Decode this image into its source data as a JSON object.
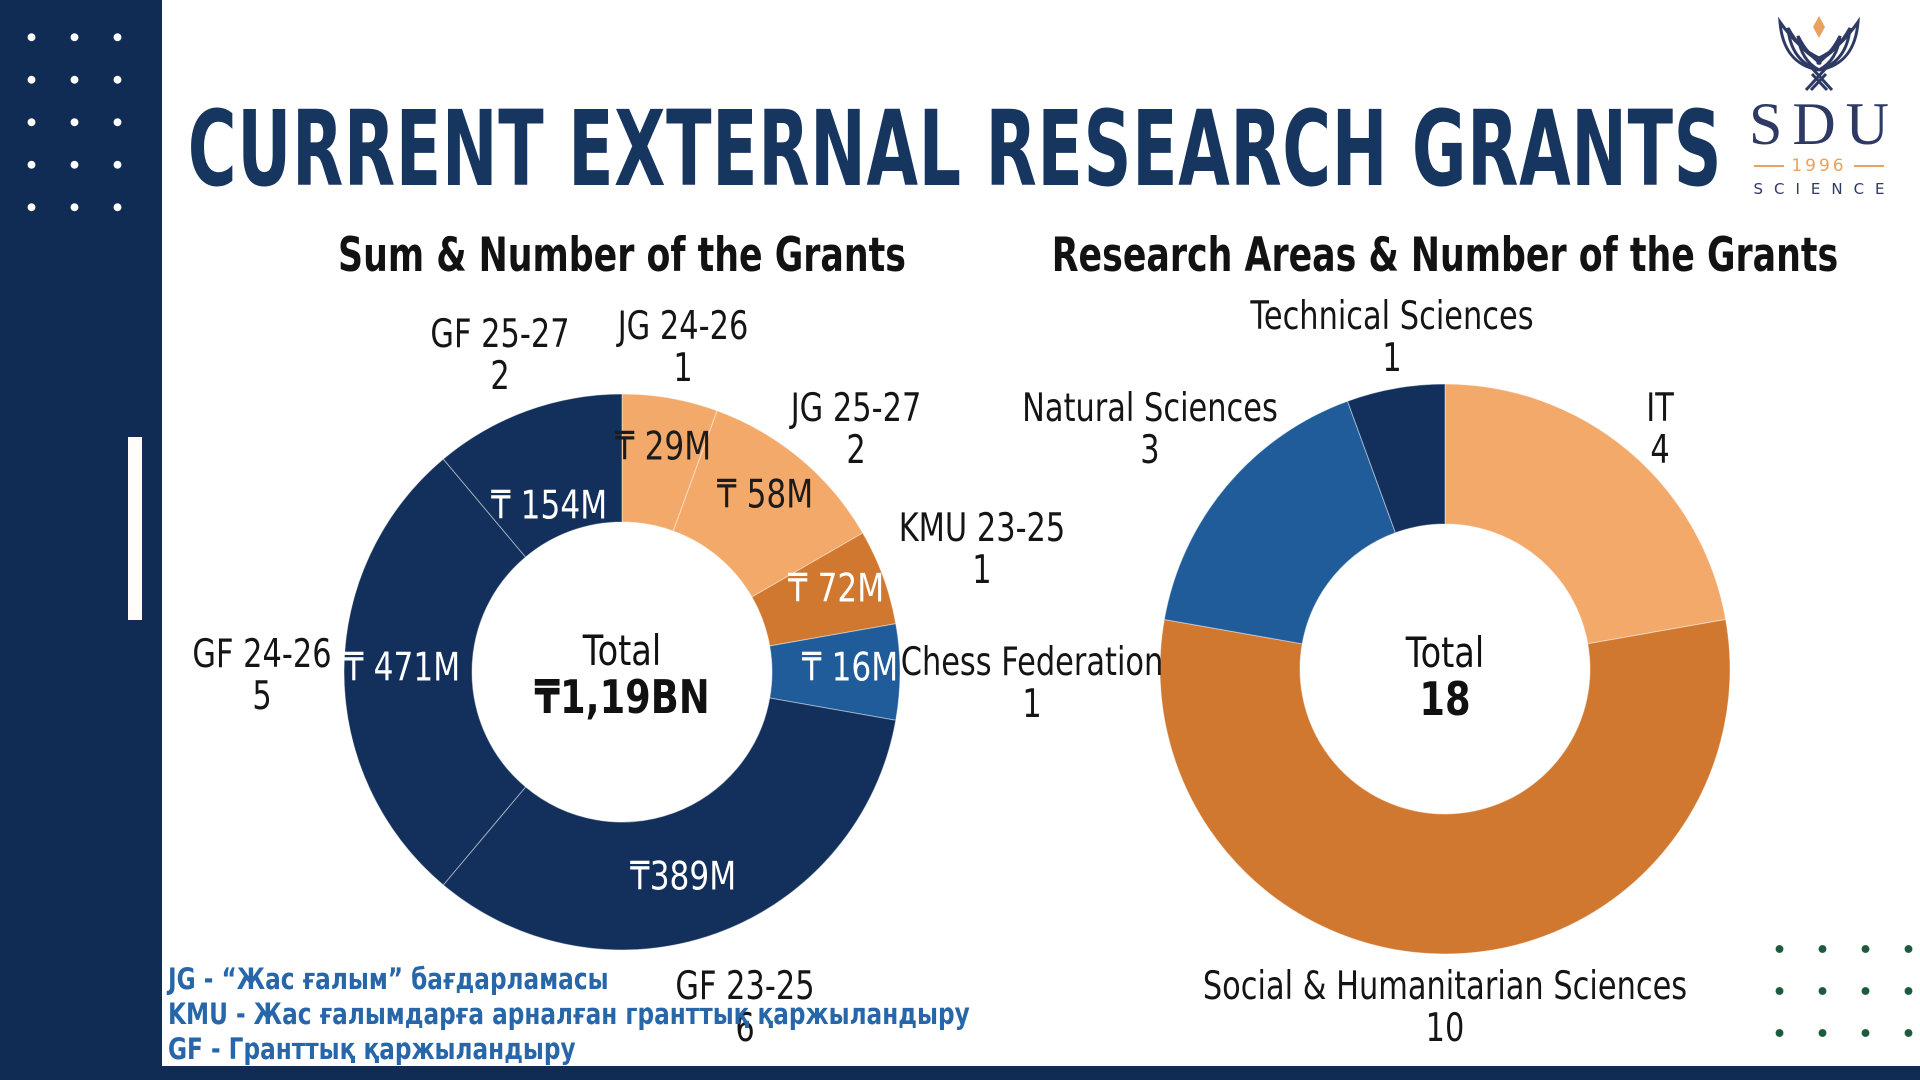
{
  "page": {
    "title": "CURRENT EXTERNAL RESEARCH GRANTS"
  },
  "logo": {
    "name": "SDU",
    "year": "1996",
    "subtitle": "SCIENCE"
  },
  "colors": {
    "navy": "#12305B",
    "light_orange": "#F2A96A",
    "dark_orange": "#D0782F",
    "medium_blue": "#1F5C99",
    "sidebar_navy": "#102C54",
    "title_navy": "#16355F",
    "legend_blue": "#2766A9",
    "dot_green": "#1D5B3C",
    "dot_white": "#FFFFFF"
  },
  "charts": {
    "left": {
      "title": "Sum & Number of the Grants",
      "center_label": "Total",
      "center_value": "₸1,19BN",
      "segments": [
        {
          "label": "JG 24-26",
          "count": 1,
          "sum": "₸ 29M",
          "color": "#F2A96A",
          "text_color": "#1c1c1c"
        },
        {
          "label": "JG 25-27",
          "count": 2,
          "sum": "₸ 58M",
          "color": "#F2A96A",
          "text_color": "#1c1c1c"
        },
        {
          "label": "KMU 23-25",
          "count": 1,
          "sum": "₸ 72M",
          "color": "#D0782F",
          "text_color": "#ffffff"
        },
        {
          "label": "Chess Federation",
          "count": 1,
          "sum": "₸ 16M",
          "color": "#1F5C99",
          "text_color": "#ffffff"
        },
        {
          "label": "GF 23-25",
          "count": 6,
          "sum": "₸389M",
          "color": "#12305B",
          "text_color": "#ffffff"
        },
        {
          "label": "GF 24-26",
          "count": 5,
          "sum": "₸ 471M",
          "color": "#12305B",
          "text_color": "#ffffff"
        },
        {
          "label": "GF 25-27",
          "count": 2,
          "sum": "₸ 154M",
          "color": "#12305B",
          "text_color": "#ffffff"
        }
      ]
    },
    "right": {
      "title": "Research Areas & Number of the Grants",
      "center_label": "Total",
      "center_value": "18",
      "segments": [
        {
          "label": "IT",
          "count": 4,
          "color": "#F2A96A"
        },
        {
          "label": "Social & Humanitarian Sciences",
          "count": 10,
          "color": "#D0782F"
        },
        {
          "label": "Natural Sciences",
          "count": 3,
          "color": "#1F5C99"
        },
        {
          "label": "Technical Sciences",
          "count": 1,
          "color": "#12305B"
        }
      ]
    }
  },
  "legend": {
    "items": [
      "JG - “Жас ғалым” бағдарламасы",
      "KMU - Жас ғалымдарға арналған гранттық қаржыландыру",
      "GF - Гранттық қаржыландыру"
    ]
  },
  "chart_data": [
    {
      "type": "pie",
      "subtype": "donut",
      "title": "Sum & Number of the Grants",
      "categories": [
        "JG 24-26",
        "JG 25-27",
        "KMU 23-25",
        "Chess Federation",
        "GF 23-25",
        "GF 24-26",
        "GF 25-27"
      ],
      "values": [
        1,
        2,
        1,
        1,
        6,
        5,
        2
      ],
      "sums_tenge_millions": [
        29,
        58,
        72,
        16,
        389,
        471,
        154
      ],
      "center_total": "₸1,19BN",
      "colors": [
        "#F2A96A",
        "#F2A96A",
        "#D0782F",
        "#1F5C99",
        "#12305B",
        "#12305B",
        "#12305B"
      ],
      "start_angle_deg": 0,
      "direction": "clockwise",
      "legend_position": "none"
    },
    {
      "type": "pie",
      "subtype": "donut",
      "title": "Research Areas & Number of the Grants",
      "categories": [
        "IT",
        "Social & Humanitarian Sciences",
        "Natural Sciences",
        "Technical Sciences"
      ],
      "values": [
        4,
        10,
        3,
        1
      ],
      "center_total": "18",
      "colors": [
        "#F2A96A",
        "#D0782F",
        "#1F5C99",
        "#12305B"
      ],
      "start_angle_deg": 0,
      "direction": "clockwise",
      "legend_position": "none"
    }
  ]
}
